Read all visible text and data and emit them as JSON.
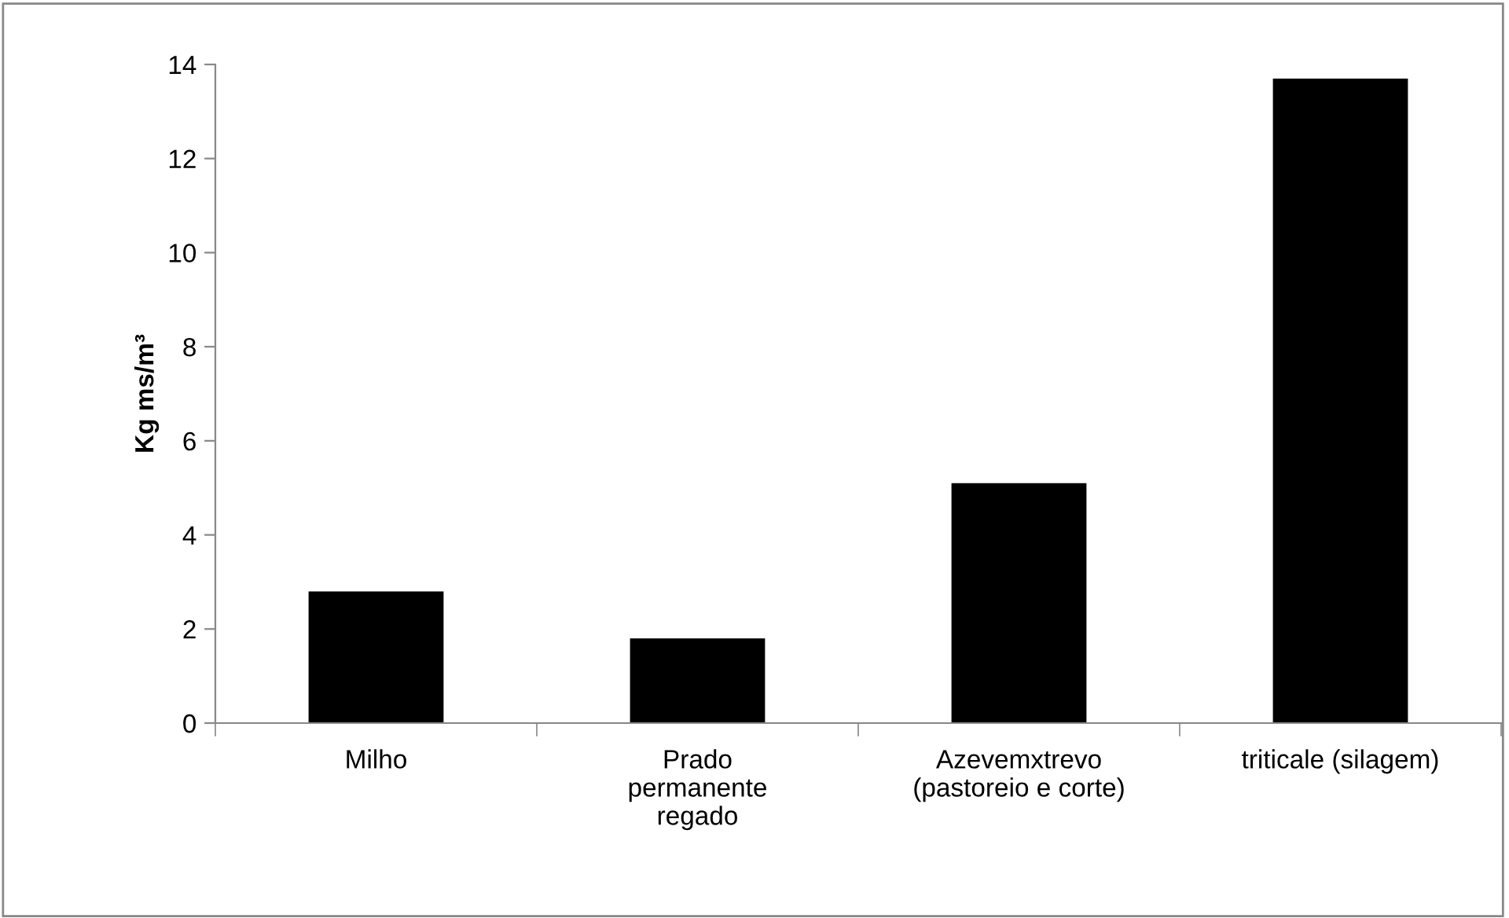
{
  "chart_data": {
    "type": "bar",
    "ylabel": "Kg ms/m³",
    "categories": [
      "Milho",
      "Prado\npermanente\nregado",
      "Azevemxtrevo\n(pastoreio e corte)",
      "triticale (silagem)"
    ],
    "values": [
      2.8,
      1.8,
      5.1,
      13.7
    ],
    "color": "#000000",
    "ylim": [
      0,
      14
    ],
    "yticks": [
      0,
      2,
      4,
      6,
      8,
      10,
      12,
      14
    ],
    "grid": false,
    "legend": false
  }
}
